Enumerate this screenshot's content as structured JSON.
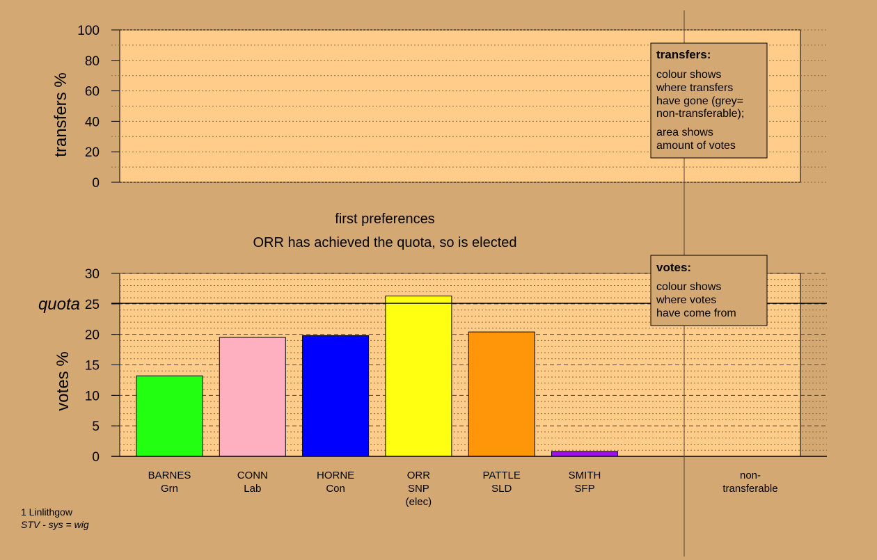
{
  "chart_data": [
    {
      "type": "bar",
      "name": "transfers",
      "ylabel": "transfers %",
      "ylim": [
        0,
        100
      ],
      "yticks": [
        0,
        20,
        40,
        60,
        80,
        100
      ],
      "grid": "dotted",
      "values": [],
      "legend": {
        "title": "transfers:",
        "lines": [
          "colour shows",
          "where transfers",
          "have gone (grey=",
          "non-transferable);",
          "area shows",
          "amount of votes"
        ],
        "placement": "top-right"
      }
    },
    {
      "type": "bar",
      "name": "votes",
      "title": "first preferences",
      "subtitle": "ORR has achieved the quota, so is elected",
      "ylabel": "votes %",
      "ylim": [
        0,
        30
      ],
      "yticks": [
        0,
        5,
        10,
        15,
        20,
        25,
        30
      ],
      "grid": "dashed",
      "quota": 25.1,
      "quota_label": "quota",
      "categories": [
        {
          "line1": "BARNES",
          "line2": "Grn",
          "line3": ""
        },
        {
          "line1": "CONN",
          "line2": "Lab",
          "line3": ""
        },
        {
          "line1": "HORNE",
          "line2": "Con",
          "line3": ""
        },
        {
          "line1": "ORR",
          "line2": "SNP",
          "line3": "(elec)"
        },
        {
          "line1": "PATTLE",
          "line2": "SLD",
          "line3": ""
        },
        {
          "line1": "SMITH",
          "line2": "SFP",
          "line3": ""
        }
      ],
      "values": [
        13.2,
        19.5,
        19.8,
        26.3,
        20.4,
        0.8
      ],
      "colors": [
        "#22ff11",
        "#ffb0c0",
        "#0000ff",
        "#ffff11",
        "#ff9508",
        "#9a10e8"
      ],
      "nontransferable": {
        "line1": "non-",
        "line2": "transferable",
        "value": 0
      },
      "legend": {
        "title": "votes:",
        "lines": [
          "colour shows",
          "where votes",
          "have come from"
        ],
        "placement": "top-right"
      }
    }
  ],
  "footer": {
    "line1": "1 Linlithgow",
    "line2": "STV - sys = wig"
  }
}
